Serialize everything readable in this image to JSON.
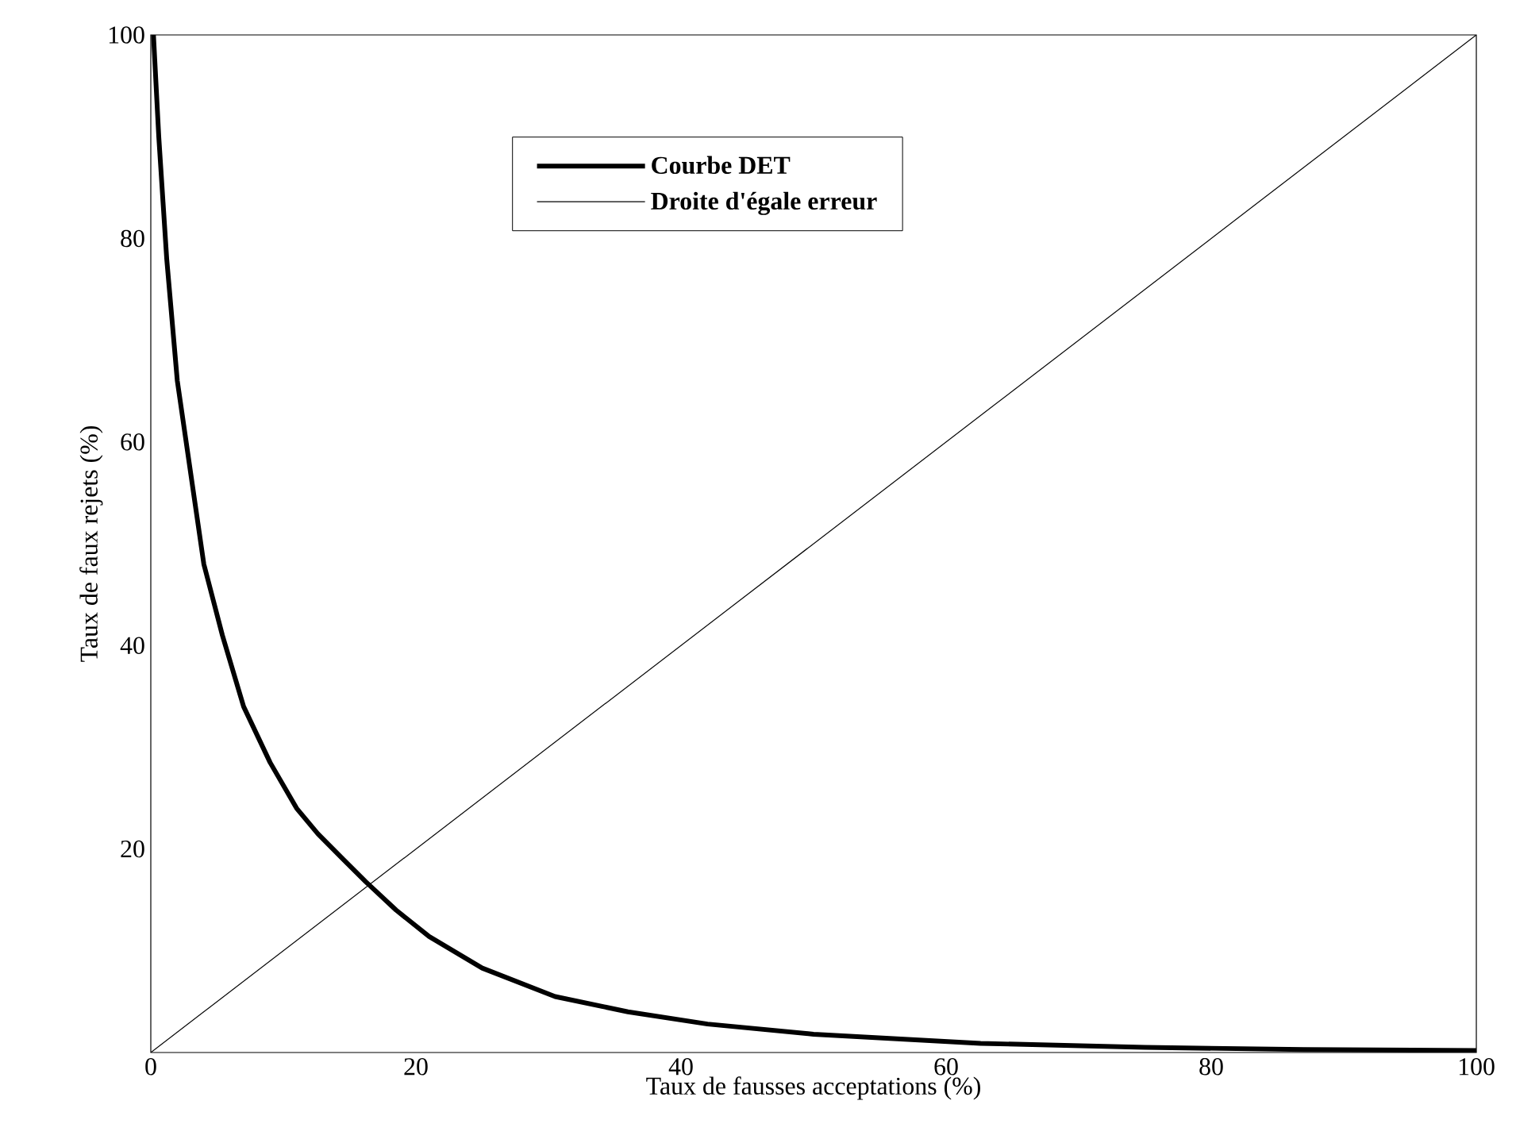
{
  "chart_data": {
    "type": "line",
    "xlabel": "Taux de fausses acceptations (%)",
    "ylabel": "Taux de faux rejets (%)",
    "xlim": [
      0,
      100
    ],
    "ylim": [
      0,
      100
    ],
    "xticks": [
      0,
      20,
      40,
      60,
      80,
      100
    ],
    "yticks": [
      20,
      40,
      60,
      80,
      100
    ],
    "legend": "top",
    "grid": false,
    "marker": "none",
    "line_style": "solid",
    "series": [
      {
        "name": "Courbe DET",
        "color": "#000000",
        "x": [
          0.2,
          0.6,
          1.2,
          2,
          3,
          4,
          5.4,
          7,
          9,
          11,
          12.6,
          14.5,
          16.2,
          18.5,
          21,
          25,
          30.5,
          36,
          42,
          50,
          62.6,
          75,
          87,
          100
        ],
        "values": [
          100,
          90,
          78,
          66,
          57,
          48,
          41,
          34,
          28.5,
          24,
          21.5,
          19,
          16.8,
          14,
          11.4,
          8.3,
          5.5,
          4,
          2.8,
          1.8,
          0.9,
          0.5,
          0.3,
          0.2
        ]
      },
      {
        "name": "Droite d'égale erreur",
        "color": "#000000",
        "x": [
          0,
          100
        ],
        "values": [
          0,
          100
        ]
      }
    ]
  }
}
